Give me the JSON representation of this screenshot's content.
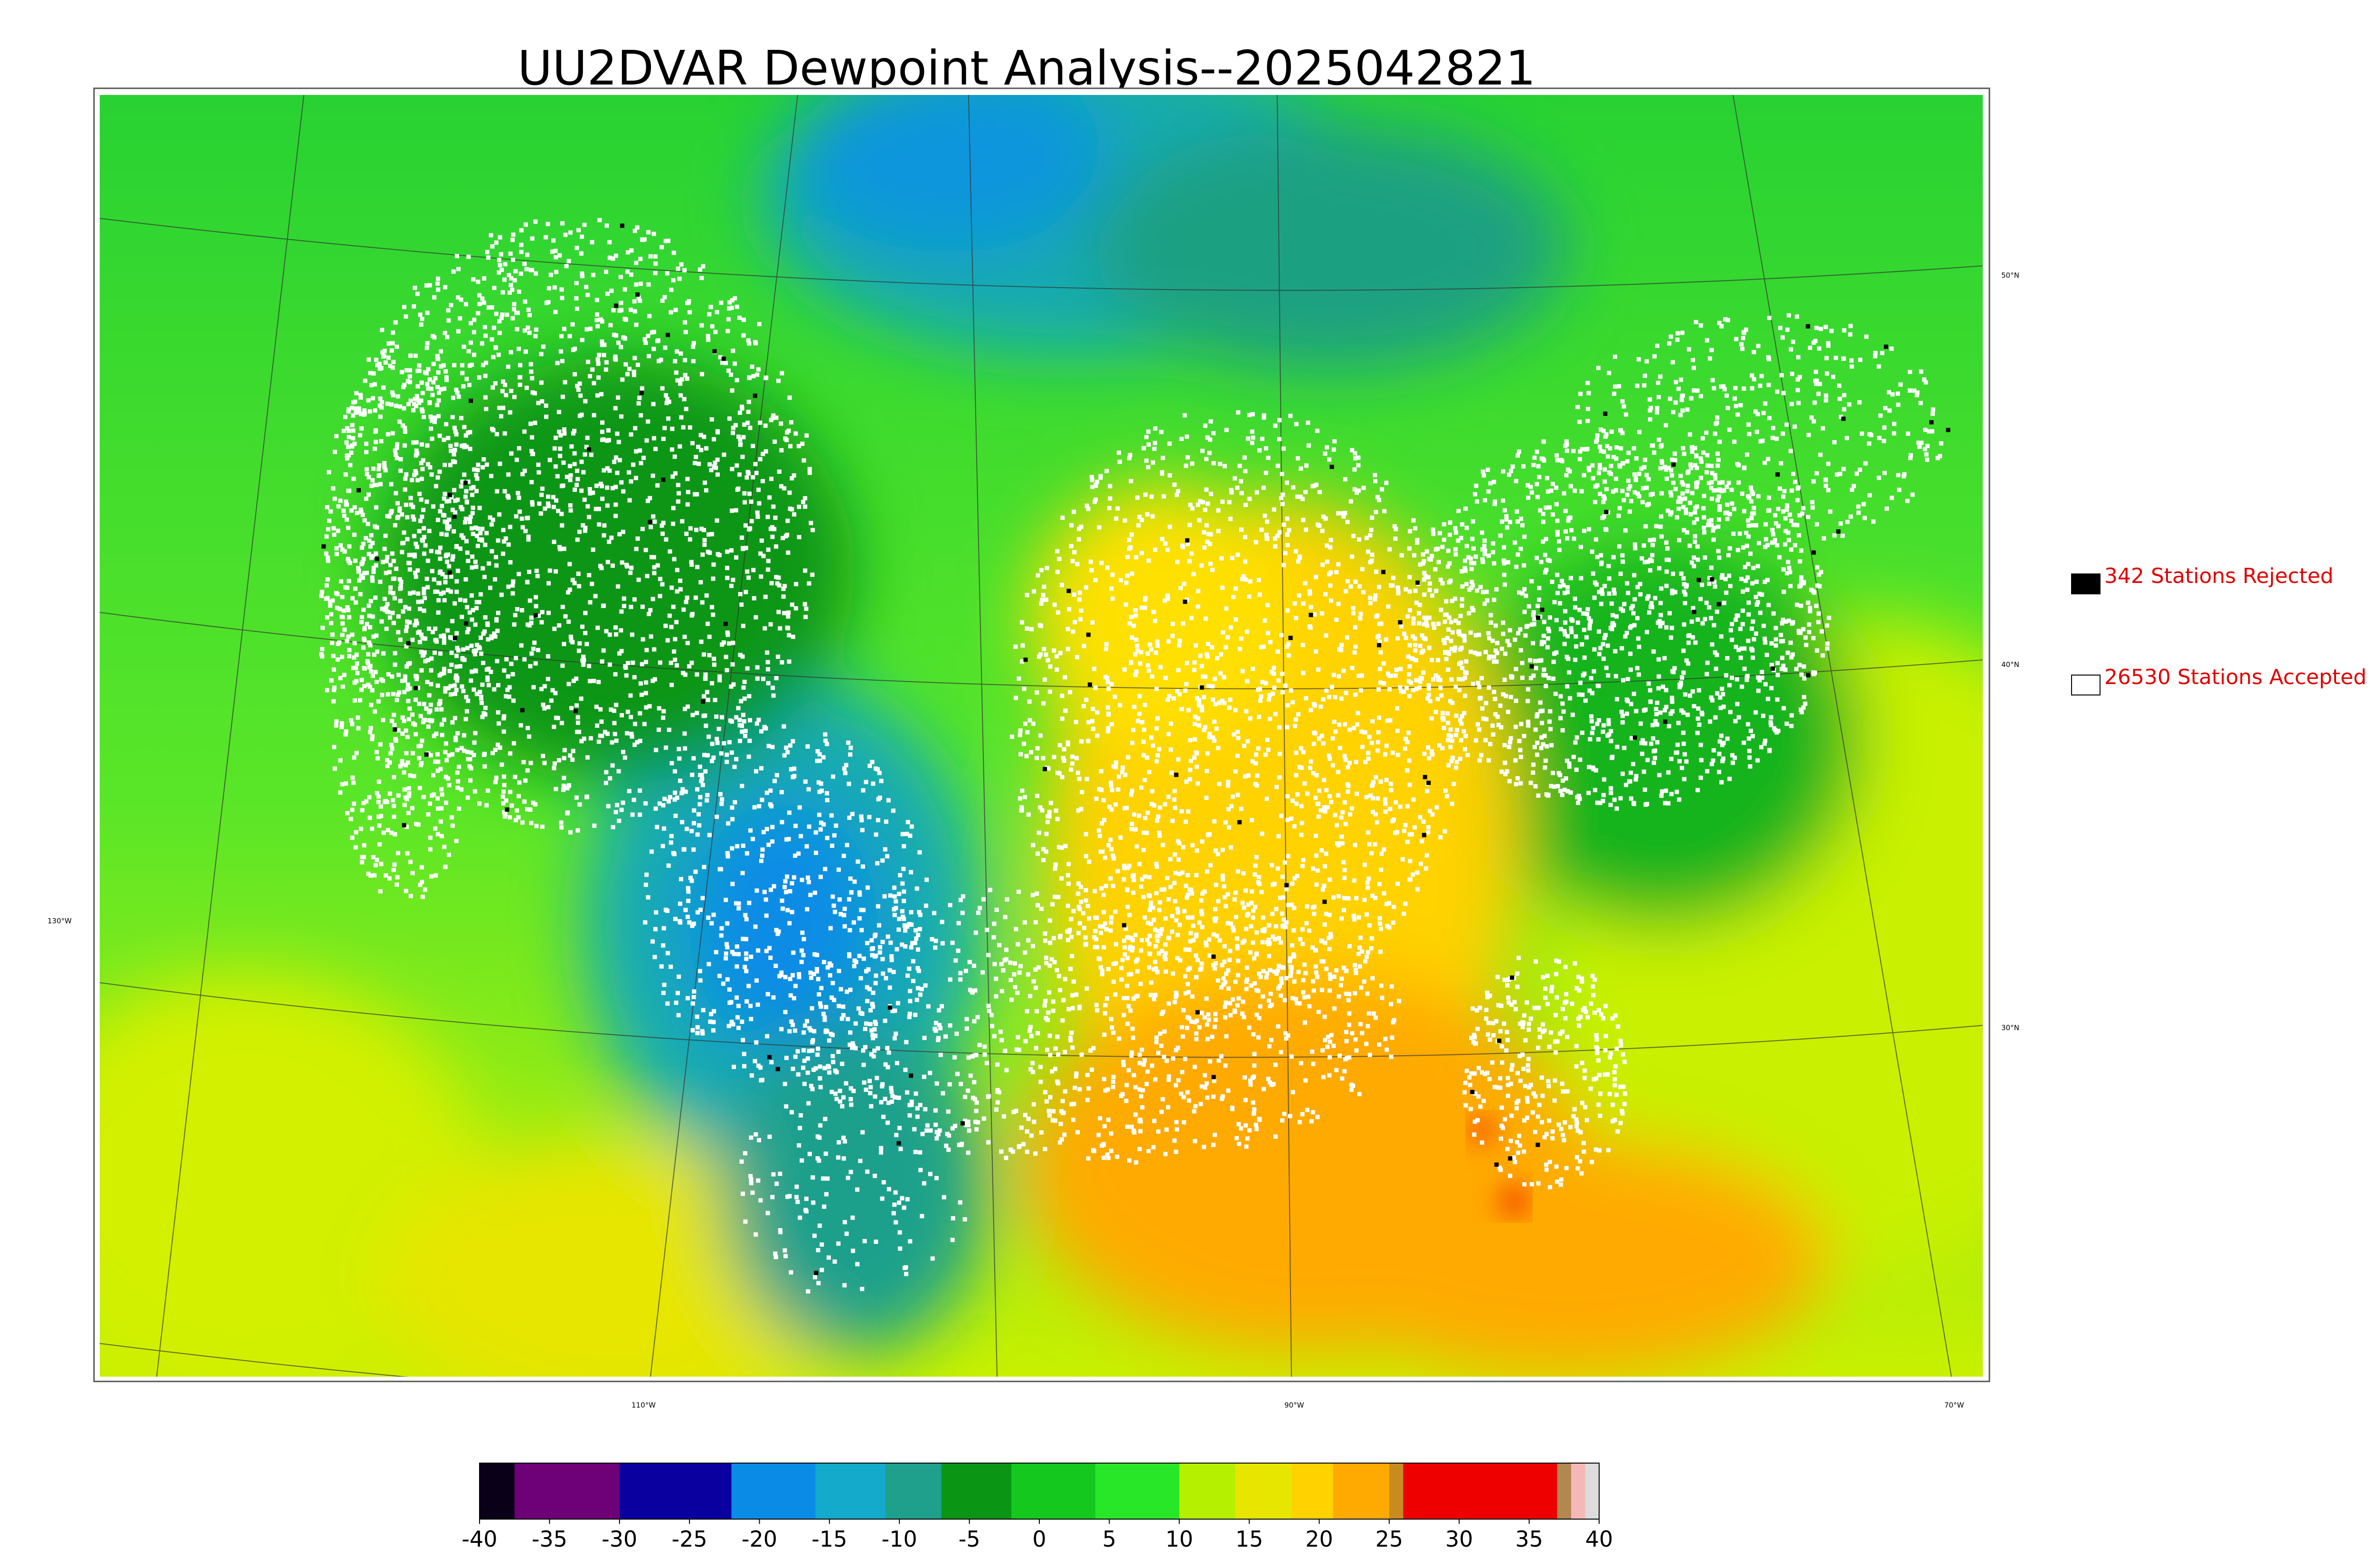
{
  "title": "UU2DVAR Dewpoint Analysis--2025042821",
  "map": {
    "lon_labels": [
      "110°W",
      "90°W",
      "70°W"
    ],
    "lat_labels": [
      "130°W",
      "50°N",
      "40°N",
      "30°N"
    ]
  },
  "legend": {
    "items": [
      {
        "label": "342 Stations Rejected",
        "swatch": "#000000"
      },
      {
        "label": "26530 Stations Accepted",
        "swatch": "#ffffff"
      }
    ],
    "text_color": "#e00000"
  },
  "colorbar": {
    "ticks": [
      "-40",
      "-35",
      "-30",
      "-25",
      "-20",
      "-15",
      "-10",
      "-5",
      "0",
      "5",
      "10",
      "15",
      "20",
      "25",
      "30",
      "35",
      "40"
    ],
    "segments": [
      {
        "from": -40,
        "to": -37.5,
        "color": "#0a0018"
      },
      {
        "from": -37.5,
        "to": -30,
        "color": "#6e0078"
      },
      {
        "from": -30,
        "to": -22,
        "color": "#0a00a0"
      },
      {
        "from": -22,
        "to": -16,
        "color": "#0a8ce6"
      },
      {
        "from": -16,
        "to": -11,
        "color": "#14aacc"
      },
      {
        "from": -11,
        "to": -7,
        "color": "#1ea08c"
      },
      {
        "from": -7,
        "to": -2,
        "color": "#0a9614"
      },
      {
        "from": -2,
        "to": 4,
        "color": "#14c81e"
      },
      {
        "from": 4,
        "to": 10,
        "color": "#28e628"
      },
      {
        "from": 10,
        "to": 14,
        "color": "#b4f000"
      },
      {
        "from": 14,
        "to": 18,
        "color": "#e6e600"
      },
      {
        "from": 18,
        "to": 21,
        "color": "#ffd200"
      },
      {
        "from": 21,
        "to": 25,
        "color": "#ffaa00"
      },
      {
        "from": 25,
        "to": 26,
        "color": "#c88c1e"
      },
      {
        "from": 26,
        "to": 37,
        "color": "#ee0000"
      },
      {
        "from": 37,
        "to": 38,
        "color": "#b08850"
      },
      {
        "from": 38,
        "to": 39,
        "color": "#f4b8b8"
      },
      {
        "from": 39,
        "to": 40,
        "color": "#dcdcdc"
      }
    ]
  }
}
